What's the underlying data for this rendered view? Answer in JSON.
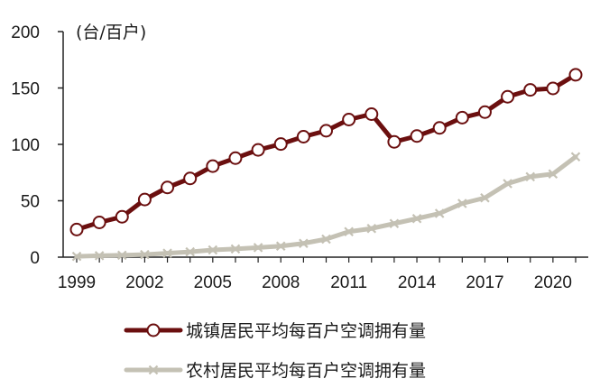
{
  "chart_data": {
    "type": "line",
    "unit_label": "(台/百户)",
    "x": [
      1999,
      2000,
      2001,
      2002,
      2003,
      2004,
      2005,
      2006,
      2007,
      2008,
      2009,
      2010,
      2011,
      2012,
      2013,
      2014,
      2015,
      2016,
      2017,
      2018,
      2019,
      2020,
      2021
    ],
    "x_ticks": [
      "1999",
      "2002",
      "2005",
      "2008",
      "2011",
      "2014",
      "2017",
      "2020"
    ],
    "y_ticks": [
      "0",
      "50",
      "100",
      "150",
      "200"
    ],
    "ylim": [
      0,
      200
    ],
    "grid": false,
    "legend_position": "bottom",
    "series": [
      {
        "name": "城镇居民平均每百户空调拥有量",
        "color": "#6b0f0f",
        "marker": "circle",
        "values": [
          24.5,
          30.8,
          35.8,
          51.1,
          61.8,
          69.8,
          80.7,
          87.8,
          95.1,
          100.3,
          106.8,
          112.1,
          122.0,
          126.8,
          102.2,
          107.4,
          114.6,
          123.7,
          128.6,
          142.2,
          148.3,
          149.6,
          161.7
        ]
      },
      {
        "name": "农村居民平均每百户空调拥有量",
        "color": "#c4c1b4",
        "marker": "x",
        "values": [
          0.7,
          1.3,
          1.7,
          2.3,
          3.5,
          4.7,
          6.4,
          7.3,
          8.5,
          9.8,
          12.2,
          16.0,
          22.6,
          25.4,
          29.8,
          34.2,
          38.8,
          47.6,
          52.6,
          65.2,
          71.3,
          73.8,
          89.0
        ]
      }
    ]
  }
}
